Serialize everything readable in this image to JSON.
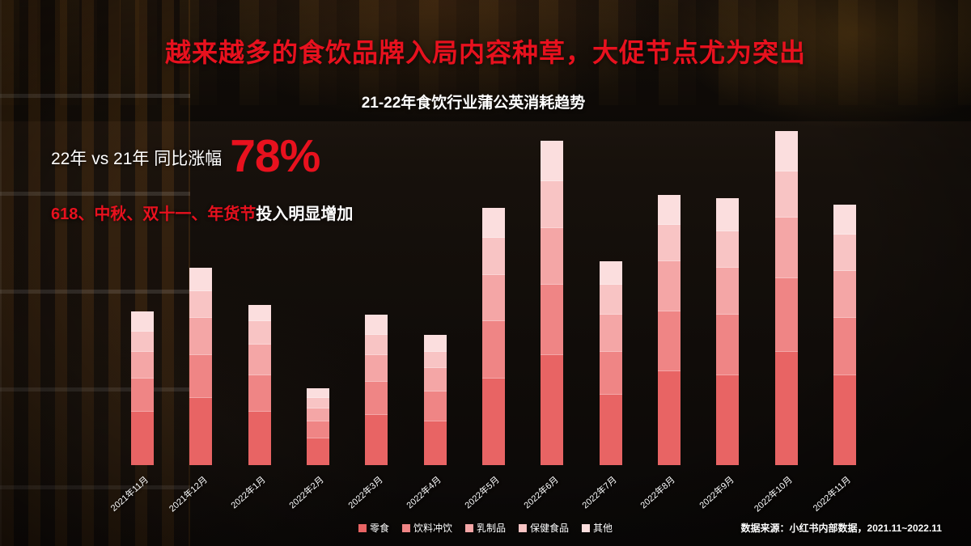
{
  "slide": {
    "title": "越来越多的食饮品牌入局内容种草，大促节点尤为突出",
    "stat": {
      "label": "22年 vs 21年 同比涨幅",
      "value": "78%"
    },
    "highlight": {
      "red": "618、中秋、双十一、年货节",
      "white": "投入明显增加"
    },
    "source": "数据来源：小红书内部数据，2021.11~2022.11"
  },
  "colors": {
    "title_red": "#e8111e",
    "bar_separator": "#ffffff"
  },
  "chart_data": {
    "type": "bar",
    "stacked": true,
    "title": "21-22年食饮行业蒲公英消耗趋势",
    "categories": [
      "2021年11月",
      "2021年12月",
      "2022年1月",
      "2022年2月",
      "2022年3月",
      "2022年4月",
      "2022年5月",
      "2022年6月",
      "2022年7月",
      "2022年8月",
      "2022年9月",
      "2022年10月",
      "2022年11月"
    ],
    "series": [
      {
        "name": "零食",
        "color": "#e86464",
        "values": [
          16,
          20,
          16,
          8,
          15,
          13,
          26,
          33,
          21,
          28,
          27,
          34,
          27
        ]
      },
      {
        "name": "饮料冲饮",
        "color": "#ef8585",
        "values": [
          10,
          13,
          11,
          5,
          10,
          9,
          17,
          21,
          13,
          18,
          18,
          22,
          17
        ]
      },
      {
        "name": "乳制品",
        "color": "#f4a6a6",
        "values": [
          8,
          11,
          9,
          4,
          8,
          7,
          14,
          17,
          11,
          15,
          14,
          18,
          14
        ]
      },
      {
        "name": "保健食品",
        "color": "#f8c4c4",
        "values": [
          6,
          8,
          7,
          3,
          6,
          5,
          11,
          14,
          9,
          11,
          11,
          14,
          11
        ]
      },
      {
        "name": "其他",
        "color": "#fbdede",
        "values": [
          6,
          7,
          5,
          3,
          6,
          5,
          9,
          12,
          7,
          9,
          10,
          12,
          9
        ]
      }
    ],
    "totals": [
      46,
      59,
      48,
      23,
      45,
      39,
      77,
      97,
      61,
      81,
      80,
      100,
      78
    ],
    "ylim": [
      0,
      100
    ],
    "grid": false,
    "x_axis_labels_rotated": true,
    "legend_position": "bottom"
  }
}
